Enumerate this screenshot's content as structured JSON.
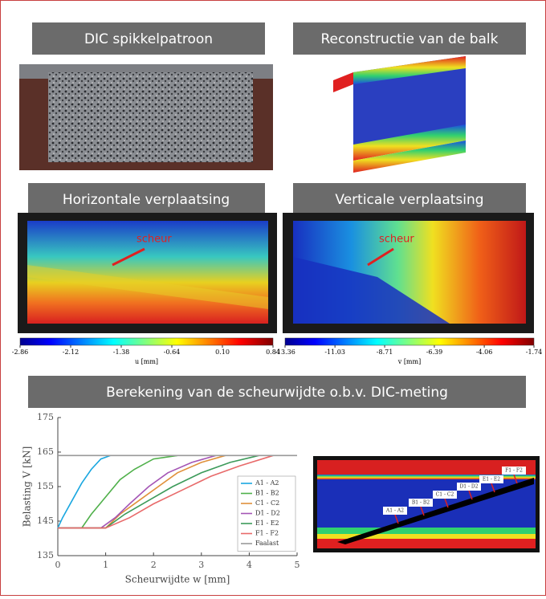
{
  "panels": {
    "speckle_title": "DIC spikkelpatroon",
    "reconstruction_title": "Reconstructie van de balk",
    "horizontal_title": "Horizontale verplaatsing",
    "vertical_title": "Verticale verplaatsing",
    "calculation_title": "Berekening van de scheurwijdte o.b.v. DIC-meting"
  },
  "annotations": {
    "crack": "scheur"
  },
  "colorbars": [
    {
      "label": "u [mm]",
      "lim": [
        -2.86,
        0.84
      ],
      "ticks": [
        -2.86,
        -2.12,
        -1.38,
        -0.64,
        {
          "value": 0.1,
          "label": "0.10"
        },
        0.84
      ]
    },
    {
      "label": "v [mm]",
      "lim": [
        -13.36,
        -1.74
      ],
      "ticks": [
        -13.36,
        -11.03,
        -8.71,
        -6.39,
        -4.06,
        -1.74
      ]
    }
  ],
  "chart_data": {
    "type": "line",
    "x_label": "Scheurwijdte w [mm]",
    "y_label": "Belasting V [kN]",
    "xlim": [
      0,
      5
    ],
    "xticks": [
      0,
      1,
      2,
      3,
      4,
      5
    ],
    "ylim": [
      135,
      175
    ],
    "yticks": [
      135,
      145,
      155,
      165,
      175
    ],
    "grid": false,
    "legend": "lower right",
    "series": [
      {
        "name": "A1 - A2",
        "color": "#1aa7e0",
        "x": [
          0,
          0.1,
          0.3,
          0.5,
          0.7,
          0.9,
          1.1
        ],
        "values": [
          143,
          146,
          151,
          156,
          160,
          163,
          164
        ]
      },
      {
        "name": "B1 - B2",
        "color": "#4fb04a",
        "x": [
          0,
          0.5,
          0.7,
          1.0,
          1.3,
          1.6,
          2.0,
          2.5
        ],
        "values": [
          143,
          143,
          147,
          152,
          157,
          160,
          163,
          164
        ]
      },
      {
        "name": "C1 - C2",
        "color": "#e0903a",
        "x": [
          0,
          1.0,
          1.3,
          1.7,
          2.1,
          2.5,
          3.0,
          3.5
        ],
        "values": [
          143,
          143,
          147,
          151,
          155,
          159,
          162,
          164
        ]
      },
      {
        "name": "D1 - D2",
        "color": "#a455b5",
        "x": [
          0,
          0.9,
          1.2,
          1.5,
          1.9,
          2.3,
          2.8,
          3.3
        ],
        "values": [
          143,
          143,
          146,
          150,
          155,
          159,
          162,
          164
        ]
      },
      {
        "name": "E1 - E2",
        "color": "#3c9a5a",
        "x": [
          0,
          1.0,
          1.4,
          1.9,
          2.4,
          3.0,
          3.6,
          4.2
        ],
        "values": [
          143,
          143,
          147,
          151,
          155,
          159,
          162,
          164
        ]
      },
      {
        "name": "F1 - F2",
        "color": "#e86a6a",
        "x": [
          0,
          1.0,
          1.5,
          2.0,
          2.6,
          3.2,
          3.8,
          4.5
        ],
        "values": [
          143,
          143,
          146,
          150,
          154,
          158,
          161,
          164
        ]
      },
      {
        "name": "Faalast",
        "color": "#9a9a9a",
        "x": [
          0,
          5
        ],
        "values": [
          164,
          164
        ]
      }
    ]
  }
}
